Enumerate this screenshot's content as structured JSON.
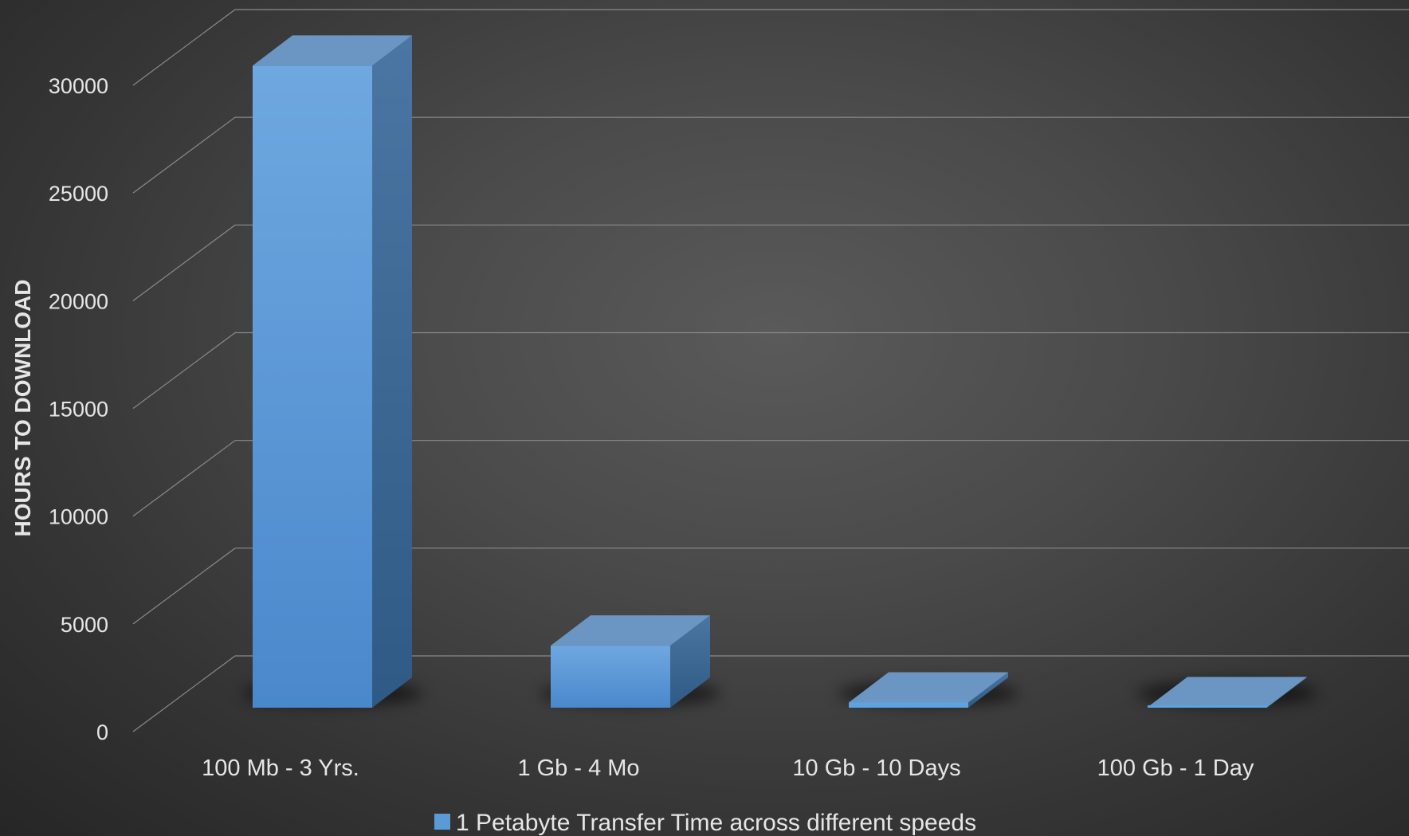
{
  "chart_data": {
    "type": "bar",
    "style": "3d-column",
    "categories": [
      "100 Mb - 3 Yrs.",
      "1 Gb - 4 Mo",
      "10 Gb - 10 Days",
      "100 Gb - 1 Day"
    ],
    "series": [
      {
        "name": "1 Petabyte Transfer Time across different speeds",
        "values": [
          29800,
          2880,
          240,
          24
        ]
      }
    ],
    "ylabel": "HOURS TO DOWNLOAD",
    "xlabel": "",
    "title": "",
    "ylim": [
      0,
      30000
    ],
    "yticks": [
      0,
      5000,
      10000,
      15000,
      20000,
      25000,
      30000
    ],
    "grid": true,
    "legend_position": "bottom",
    "colors": {
      "bar_front": "#5b9bd5",
      "bar_side": "#3f6f9c",
      "bar_top": "#6b96c4",
      "grid": "#8a8a8a",
      "text": "#e6e6e6"
    }
  }
}
